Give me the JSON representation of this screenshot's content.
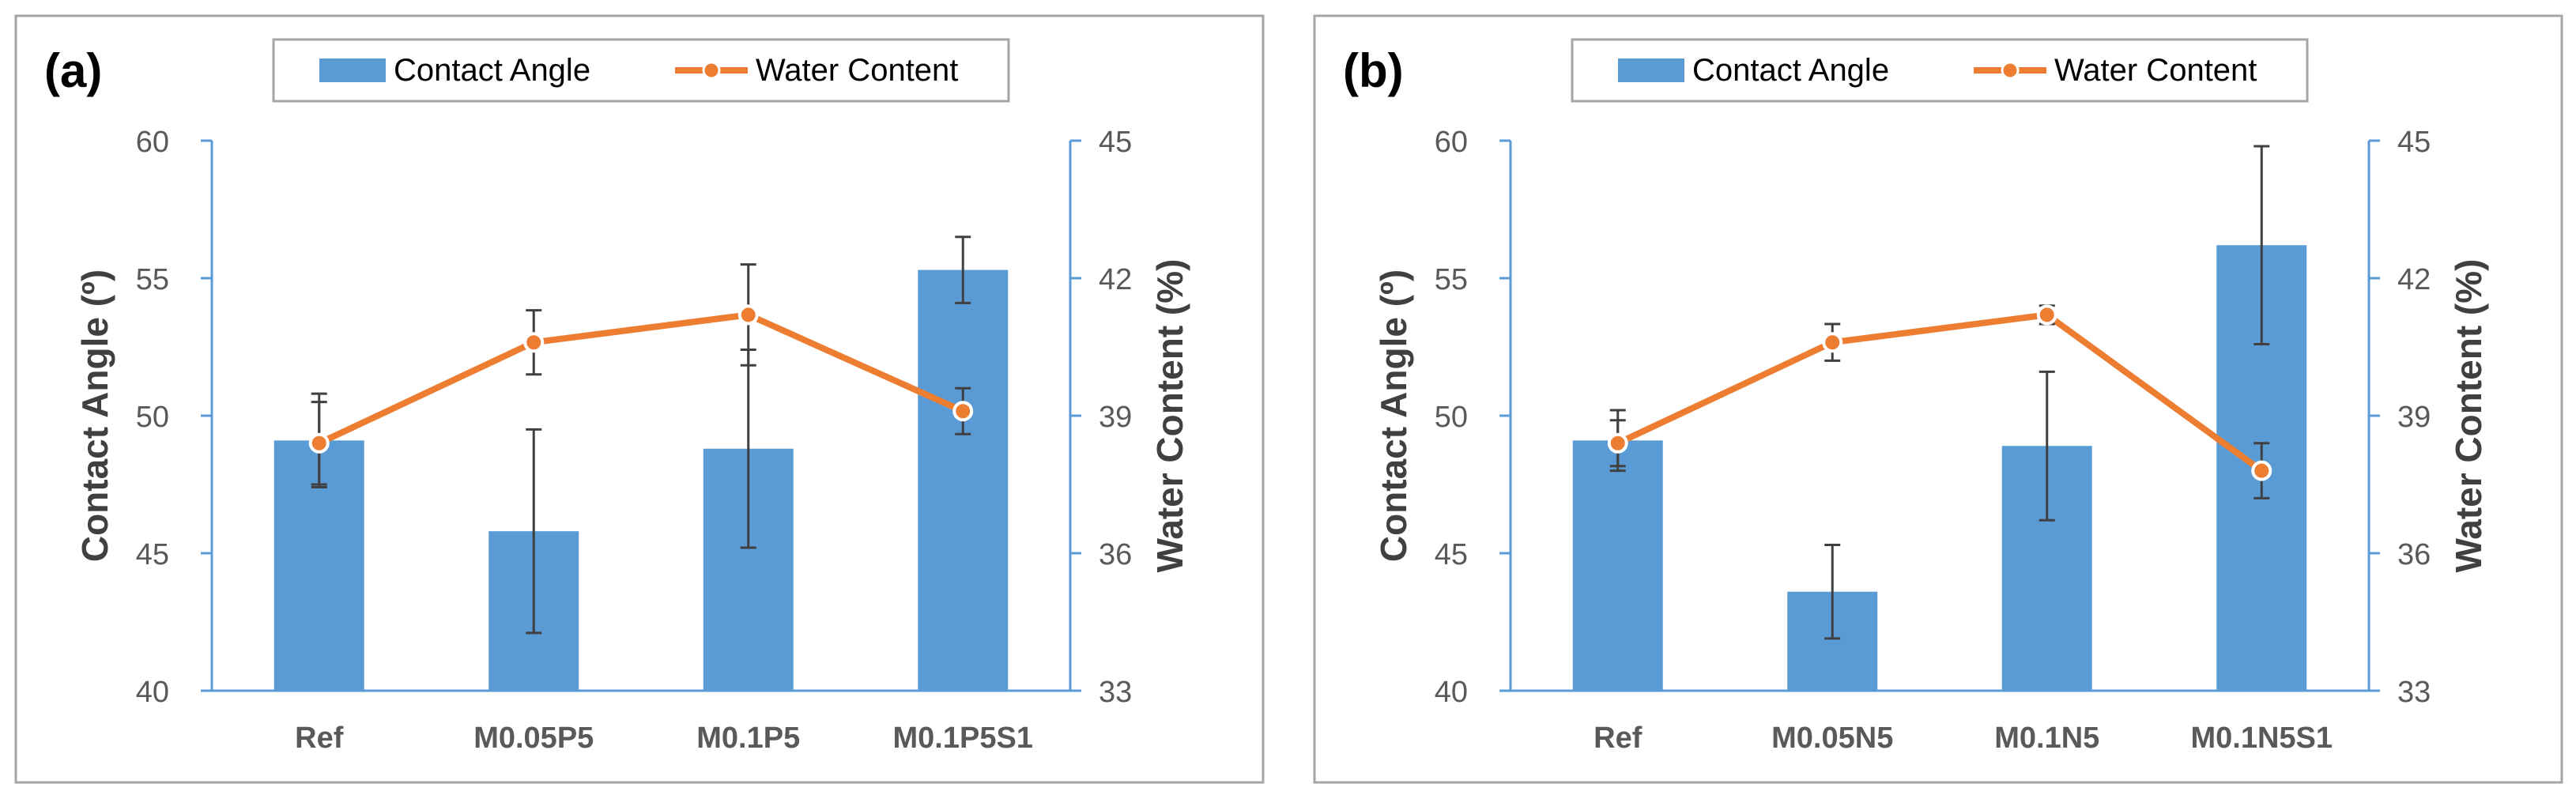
{
  "colors": {
    "bar": "#5b9bd5",
    "line": "#ed7d31",
    "axis_right": "#5b9bd5",
    "error_bar": "#404040",
    "frame": "#a6a6a6",
    "text": "#595959"
  },
  "chart_data": [
    {
      "type": "bar",
      "panel_label": "(a)",
      "categories": [
        "Ref",
        "M0.05P5",
        "M0.1P5",
        "M0.1P5S1"
      ],
      "legend": {
        "bar_label": "Contact Angle",
        "line_label": "Water Content",
        "placement": "top-center"
      },
      "ylabel": "Contact Angle (º)",
      "y2label": "Water Content (%)",
      "ylim": [
        40,
        60
      ],
      "yticks": [
        40,
        45,
        50,
        55,
        60
      ],
      "y2lim": [
        33,
        45
      ],
      "y2ticks": [
        33,
        36,
        39,
        42,
        45
      ],
      "series": [
        {
          "name": "Contact Angle",
          "kind": "bar",
          "axis": "left",
          "values": [
            49.1,
            45.8,
            48.8,
            55.3
          ],
          "errors": [
            1.7,
            3.7,
            3.6,
            1.2
          ]
        },
        {
          "name": "Water Content",
          "kind": "line",
          "axis": "right",
          "values": [
            38.4,
            40.6,
            41.2,
            39.1
          ],
          "errors": [
            0.9,
            0.7,
            1.1,
            0.5
          ]
        }
      ]
    },
    {
      "type": "bar",
      "panel_label": "(b)",
      "categories": [
        "Ref",
        "M0.05N5",
        "M0.1N5",
        "M0.1N5S1"
      ],
      "legend": {
        "bar_label": "Contact Angle",
        "line_label": "Water Content",
        "placement": "top-center"
      },
      "ylabel": "Contact Angle (º)",
      "y2label": "Water Content (%)",
      "ylim": [
        40,
        60
      ],
      "yticks": [
        40,
        45,
        50,
        55,
        60
      ],
      "y2lim": [
        33,
        45
      ],
      "y2ticks": [
        33,
        36,
        39,
        42,
        45
      ],
      "series": [
        {
          "name": "Contact Angle",
          "kind": "bar",
          "axis": "left",
          "values": [
            49.1,
            43.6,
            48.9,
            56.2
          ],
          "errors": [
            1.1,
            1.7,
            2.7,
            3.6
          ]
        },
        {
          "name": "Water Content",
          "kind": "line",
          "axis": "right",
          "values": [
            38.4,
            40.6,
            41.2,
            37.8
          ],
          "errors": [
            0.5,
            0.4,
            0.2,
            0.6
          ]
        }
      ]
    }
  ]
}
